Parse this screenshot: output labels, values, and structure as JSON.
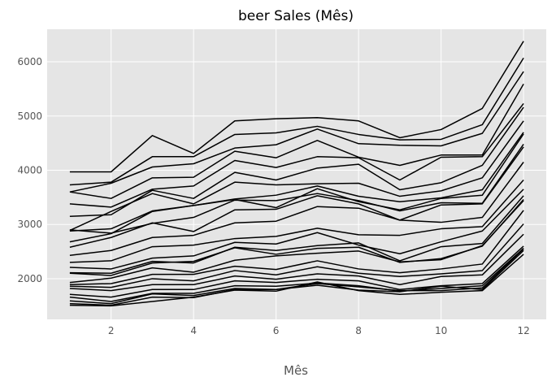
{
  "colors": {
    "plot_background": "#e5e5e5",
    "grid": "#ffffff",
    "line": "#000000",
    "tick_text": "#555555"
  },
  "chart_data": {
    "type": "line",
    "title": "beer Sales (Mês)",
    "xlabel": "Mês",
    "ylabel": "",
    "grid": true,
    "legend": "none",
    "xlim": [
      0.45,
      12.55
    ],
    "ylim": [
      1250,
      6600
    ],
    "xticks": [
      2,
      4,
      6,
      8,
      10,
      12
    ],
    "yticks": [
      2000,
      3000,
      4000,
      5000,
      6000
    ],
    "x": [
      1,
      2,
      3,
      4,
      5,
      6,
      7,
      8,
      9,
      10,
      11,
      12
    ],
    "series": [
      {
        "values": [
          3970,
          3970,
          4640,
          4310,
          4910,
          4950,
          4970,
          4910,
          4600,
          4750,
          5140,
          6380
        ]
      },
      {
        "values": [
          3730,
          3780,
          4250,
          4250,
          4660,
          4690,
          4810,
          4660,
          4560,
          4570,
          4840,
          6070
        ]
      },
      {
        "values": [
          3600,
          3760,
          4060,
          4120,
          4410,
          4470,
          4760,
          4490,
          4460,
          4450,
          4680,
          5820
        ]
      },
      {
        "values": [
          3600,
          3480,
          3860,
          3870,
          4350,
          4230,
          4550,
          4240,
          4090,
          4280,
          4280,
          5590
        ]
      },
      {
        "values": [
          3380,
          3320,
          3650,
          3710,
          4180,
          4050,
          4250,
          4230,
          3820,
          4240,
          4250,
          5230
        ]
      },
      {
        "values": [
          3150,
          3180,
          3630,
          3480,
          3960,
          3820,
          4040,
          4110,
          3640,
          3770,
          4090,
          5160
        ]
      },
      {
        "values": [
          2890,
          3240,
          3570,
          3380,
          3780,
          3730,
          3750,
          3760,
          3520,
          3620,
          3860,
          4910
        ]
      },
      {
        "values": [
          2880,
          2920,
          3250,
          3350,
          3470,
          3540,
          3710,
          3520,
          3420,
          3490,
          3640,
          4700
        ]
      },
      {
        "values": [
          2680,
          2830,
          3240,
          3350,
          3460,
          3310,
          3660,
          3420,
          3270,
          3480,
          3540,
          4670
        ]
      },
      {
        "values": [
          2900,
          2840,
          3020,
          3130,
          3450,
          3440,
          3570,
          3440,
          3250,
          3400,
          3390,
          4480
        ]
      },
      {
        "values": [
          2580,
          2760,
          3030,
          2870,
          3270,
          3280,
          3530,
          3380,
          3080,
          3360,
          3380,
          4430
        ]
      },
      {
        "values": [
          2430,
          2520,
          2760,
          2800,
          3030,
          3060,
          3330,
          3300,
          3080,
          3040,
          3130,
          4150
        ]
      },
      {
        "values": [
          2300,
          2330,
          2590,
          2620,
          2740,
          2780,
          2930,
          2810,
          2800,
          2920,
          2960,
          3820
        ]
      },
      {
        "values": [
          2210,
          2180,
          2380,
          2420,
          2670,
          2640,
          2850,
          2620,
          2460,
          2680,
          2880,
          3650
        ]
      },
      {
        "values": [
          2110,
          2100,
          2320,
          2290,
          2580,
          2520,
          2610,
          2660,
          2330,
          2590,
          2650,
          3530
        ]
      },
      {
        "values": [
          2100,
          2060,
          2290,
          2320,
          2570,
          2450,
          2560,
          2580,
          2300,
          2370,
          2600,
          3460
        ]
      },
      {
        "values": [
          1930,
          2010,
          2200,
          2120,
          2340,
          2420,
          2470,
          2510,
          2310,
          2350,
          2610,
          3440
        ]
      },
      {
        "values": [
          1890,
          1910,
          2080,
          2080,
          2230,
          2170,
          2330,
          2180,
          2110,
          2180,
          2270,
          3260
        ]
      },
      {
        "values": [
          1860,
          1840,
          2000,
          1960,
          2150,
          2070,
          2220,
          2100,
          2040,
          2090,
          2150,
          3010
        ]
      },
      {
        "values": [
          1820,
          1780,
          1890,
          1890,
          2050,
          1990,
          2090,
          2050,
          1890,
          2040,
          2070,
          2820
        ]
      },
      {
        "values": [
          1710,
          1660,
          1800,
          1800,
          1960,
          1930,
          1990,
          1960,
          1800,
          1870,
          1910,
          2600
        ]
      },
      {
        "values": [
          1660,
          1580,
          1730,
          1730,
          1870,
          1860,
          1920,
          1870,
          1770,
          1820,
          1870,
          2560
        ]
      },
      {
        "values": [
          1590,
          1540,
          1720,
          1690,
          1820,
          1800,
          1910,
          1850,
          1780,
          1780,
          1830,
          2550
        ]
      },
      {
        "values": [
          1540,
          1510,
          1660,
          1650,
          1800,
          1800,
          1880,
          1790,
          1760,
          1860,
          1800,
          2520
        ]
      },
      {
        "values": [
          1510,
          1500,
          1580,
          1660,
          1790,
          1770,
          1940,
          1780,
          1710,
          1750,
          1780,
          2450
        ]
      }
    ]
  }
}
